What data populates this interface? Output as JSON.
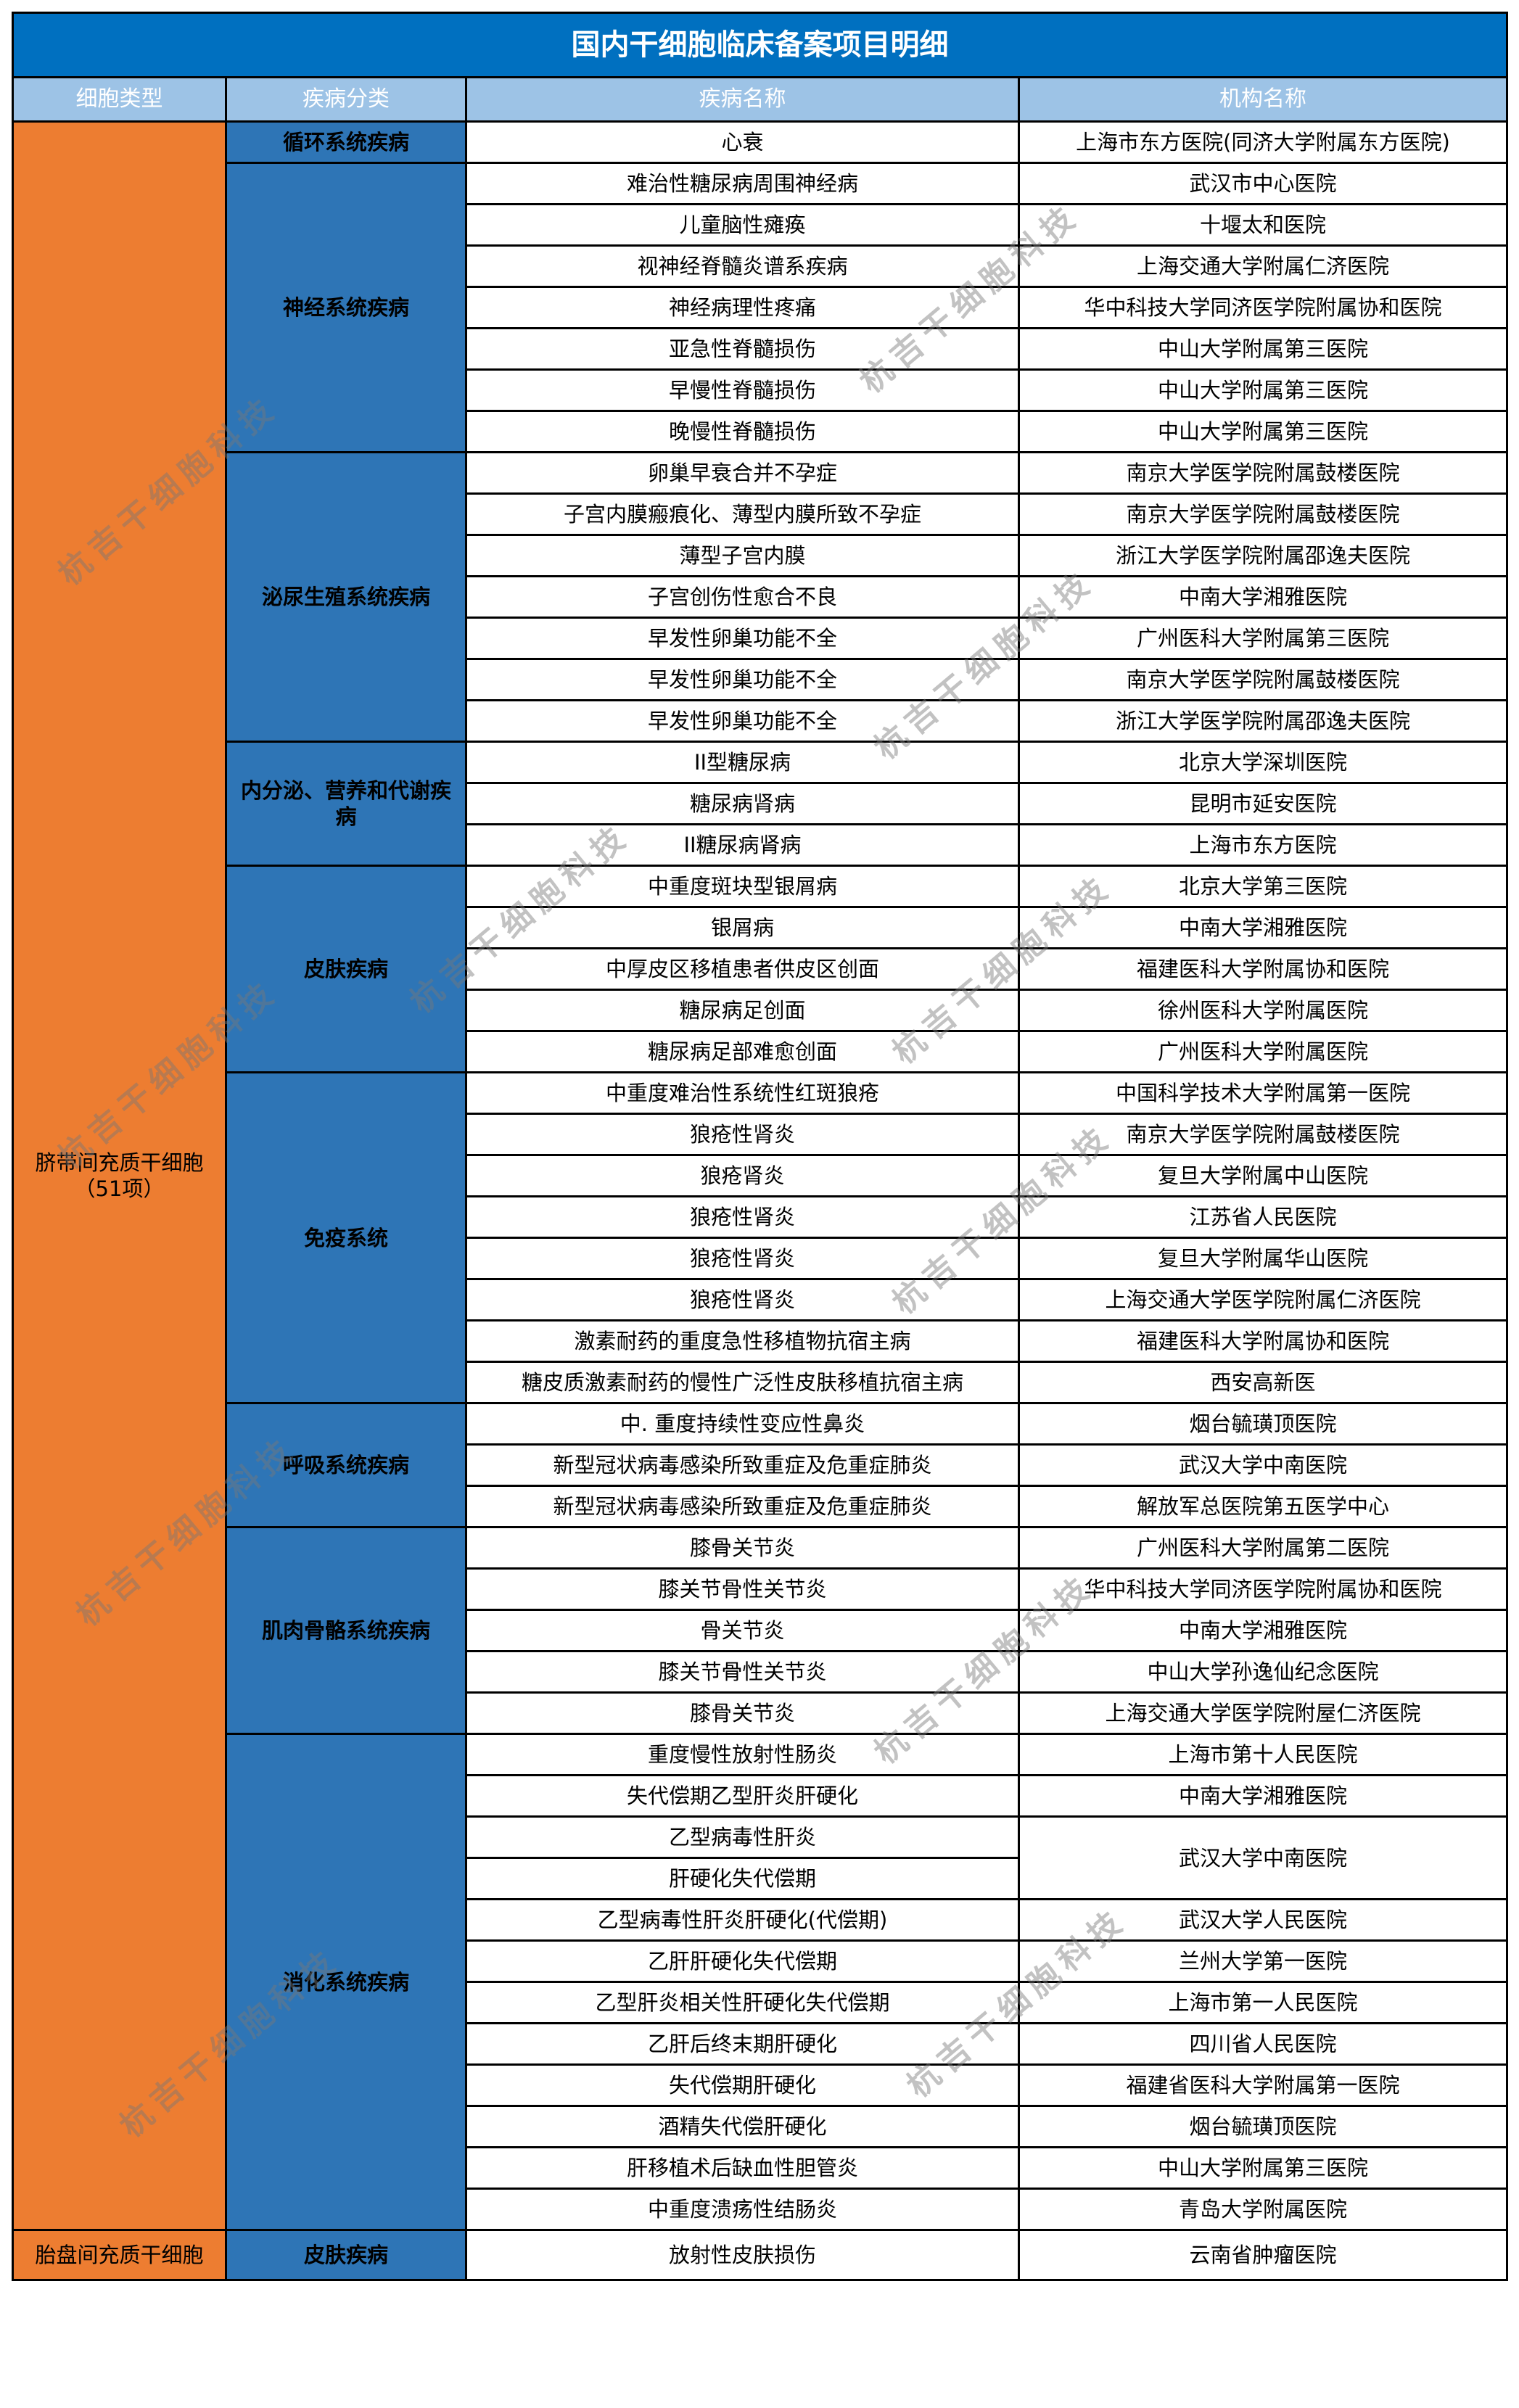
{
  "title": "国内干细胞临床备案项目明细",
  "headers": [
    "细胞类型",
    "疾病分类",
    "疾病名称",
    "机构名称"
  ],
  "watermark": "杭吉干细胞科技",
  "colors": {
    "title_bg": "#0070C0",
    "header_bg": "#9DC3E6",
    "cell_type_bg": "#ED7D31",
    "category_bg": "#2E75B6"
  },
  "groups": [
    {
      "cell_type": "脐带间充质干细胞（51项）",
      "categories": [
        {
          "name": "循环系统疾病",
          "rows": [
            {
              "disease": "心衰",
              "institution": "上海市东方医院(同济大学附属东方医院)"
            }
          ]
        },
        {
          "name": "神经系统疾病",
          "rows": [
            {
              "disease": "难治性糖尿病周围神经病",
              "institution": "武汉市中心医院"
            },
            {
              "disease": "儿童脑性瘫痪",
              "institution": "十堰太和医院"
            },
            {
              "disease": "视神经脊髓炎谱系疾病",
              "institution": "上海交通大学附属仁济医院"
            },
            {
              "disease": "神经病理性疼痛",
              "institution": "华中科技大学同济医学院附属协和医院"
            },
            {
              "disease": "亚急性脊髓损伤",
              "institution": "中山大学附属第三医院"
            },
            {
              "disease": "早慢性脊髓损伤",
              "institution": "中山大学附属第三医院"
            },
            {
              "disease": "晚慢性脊髓损伤",
              "institution": "中山大学附属第三医院"
            }
          ]
        },
        {
          "name": "泌尿生殖系统疾病",
          "rows": [
            {
              "disease": "卵巢早衰合并不孕症",
              "institution": "南京大学医学院附属鼓楼医院"
            },
            {
              "disease": "子宫内膜瘢痕化、薄型内膜所致不孕症",
              "institution": "南京大学医学院附属鼓楼医院"
            },
            {
              "disease": "薄型子宫内膜",
              "institution": "浙江大学医学院附属邵逸夫医院"
            },
            {
              "disease": "子宫创伤性愈合不良",
              "institution": "中南大学湘雅医院"
            },
            {
              "disease": "早发性卵巢功能不全",
              "institution": "广州医科大学附属第三医院"
            },
            {
              "disease": "早发性卵巢功能不全",
              "institution": "南京大学医学院附属鼓楼医院"
            },
            {
              "disease": "早发性卵巢功能不全",
              "institution": "浙江大学医学院附属邵逸夫医院"
            }
          ]
        },
        {
          "name": "内分泌、营养和代谢疾病",
          "rows": [
            {
              "disease": "II型糖尿病",
              "institution": "北京大学深圳医院"
            },
            {
              "disease": "糖尿病肾病",
              "institution": "昆明市延安医院"
            },
            {
              "disease": "II糖尿病肾病",
              "institution": "上海市东方医院"
            }
          ]
        },
        {
          "name": "皮肤疾病",
          "rows": [
            {
              "disease": "中重度斑块型银屑病",
              "institution": "北京大学第三医院"
            },
            {
              "disease": "银屑病",
              "institution": "中南大学湘雅医院"
            },
            {
              "disease": "中厚皮区移植患者供皮区创面",
              "institution": "福建医科大学附属协和医院"
            },
            {
              "disease": "糖尿病足创面",
              "institution": "徐州医科大学附属医院"
            },
            {
              "disease": "糖尿病足部难愈创面",
              "institution": "广州医科大学附属医院"
            }
          ]
        },
        {
          "name": "免疫系统",
          "rows": [
            {
              "disease": "中重度难治性系统性红斑狼疮",
              "institution": "中国科学技术大学附属第一医院"
            },
            {
              "disease": "狼疮性肾炎",
              "institution": "南京大学医学院附属鼓楼医院"
            },
            {
              "disease": "狼疮肾炎",
              "institution": "复旦大学附属中山医院"
            },
            {
              "disease": "狼疮性肾炎",
              "institution": "江苏省人民医院"
            },
            {
              "disease": "狼疮性肾炎",
              "institution": "复旦大学附属华山医院"
            },
            {
              "disease": "狼疮性肾炎",
              "institution": "上海交通大学医学院附属仁济医院"
            },
            {
              "disease": "激素耐药的重度急性移植物抗宿主病",
              "institution": "福建医科大学附属协和医院"
            },
            {
              "disease": "糖皮质激素耐药的慢性广泛性皮肤移植抗宿主病",
              "institution": "西安高新医"
            }
          ]
        },
        {
          "name": "呼吸系统疾病",
          "rows": [
            {
              "disease": "中. 重度持续性变应性鼻炎",
              "institution": "烟台毓璜顶医院"
            },
            {
              "disease": "新型冠状病毒感染所致重症及危重症肺炎",
              "institution": "武汉大学中南医院"
            },
            {
              "disease": "新型冠状病毒感染所致重症及危重症肺炎",
              "institution": "解放军总医院第五医学中心"
            }
          ]
        },
        {
          "name": "肌肉骨骼系统疾病",
          "rows": [
            {
              "disease": "膝骨关节炎",
              "institution": "广州医科大学附属第二医院"
            },
            {
              "disease": "膝关节骨性关节炎",
              "institution": "华中科技大学同济医学院附属协和医院"
            },
            {
              "disease": "骨关节炎",
              "institution": "中南大学湘雅医院"
            },
            {
              "disease": "膝关节骨性关节炎",
              "institution": "中山大学孙逸仙纪念医院"
            },
            {
              "disease": "膝骨关节炎",
              "institution": "上海交通大学医学院附屋仁济医院"
            }
          ]
        },
        {
          "name": "消化系统疾病",
          "rows": [
            {
              "disease": "重度慢性放射性肠炎",
              "institution": "上海市第十人民医院"
            },
            {
              "disease": "失代偿期乙型肝炎肝硬化",
              "institution": "中南大学湘雅医院"
            },
            {
              "disease": "乙型病毒性肝炎",
              "institution": "武汉大学中南医院",
              "inst_span": 2
            },
            {
              "disease": "肝硬化失代偿期",
              "institution": null
            },
            {
              "disease": "乙型病毒性肝炎肝硬化(代偿期)",
              "institution": "武汉大学人民医院"
            },
            {
              "disease": "乙肝肝硬化失代偿期",
              "institution": "兰州大学第一医院"
            },
            {
              "disease": "乙型肝炎相关性肝硬化失代偿期",
              "institution": "上海市第一人民医院"
            },
            {
              "disease": "乙肝后终末期肝硬化",
              "institution": "四川省人民医院"
            },
            {
              "disease": "失代偿期肝硬化",
              "institution": "福建省医科大学附属第一医院"
            },
            {
              "disease": "酒精失代偿肝硬化",
              "institution": "烟台毓璜顶医院"
            },
            {
              "disease": "肝移植术后缺血性胆管炎",
              "institution": "中山大学附属第三医院"
            },
            {
              "disease": "中重度溃疡性结肠炎",
              "institution": "青岛大学附属医院"
            }
          ]
        }
      ]
    },
    {
      "cell_type": "胎盘间充质干细胞",
      "categories": [
        {
          "name": "皮肤疾病",
          "rows": [
            {
              "disease": "放射性皮肤损伤",
              "institution": "云南省肿瘤医院"
            }
          ]
        }
      ]
    }
  ]
}
